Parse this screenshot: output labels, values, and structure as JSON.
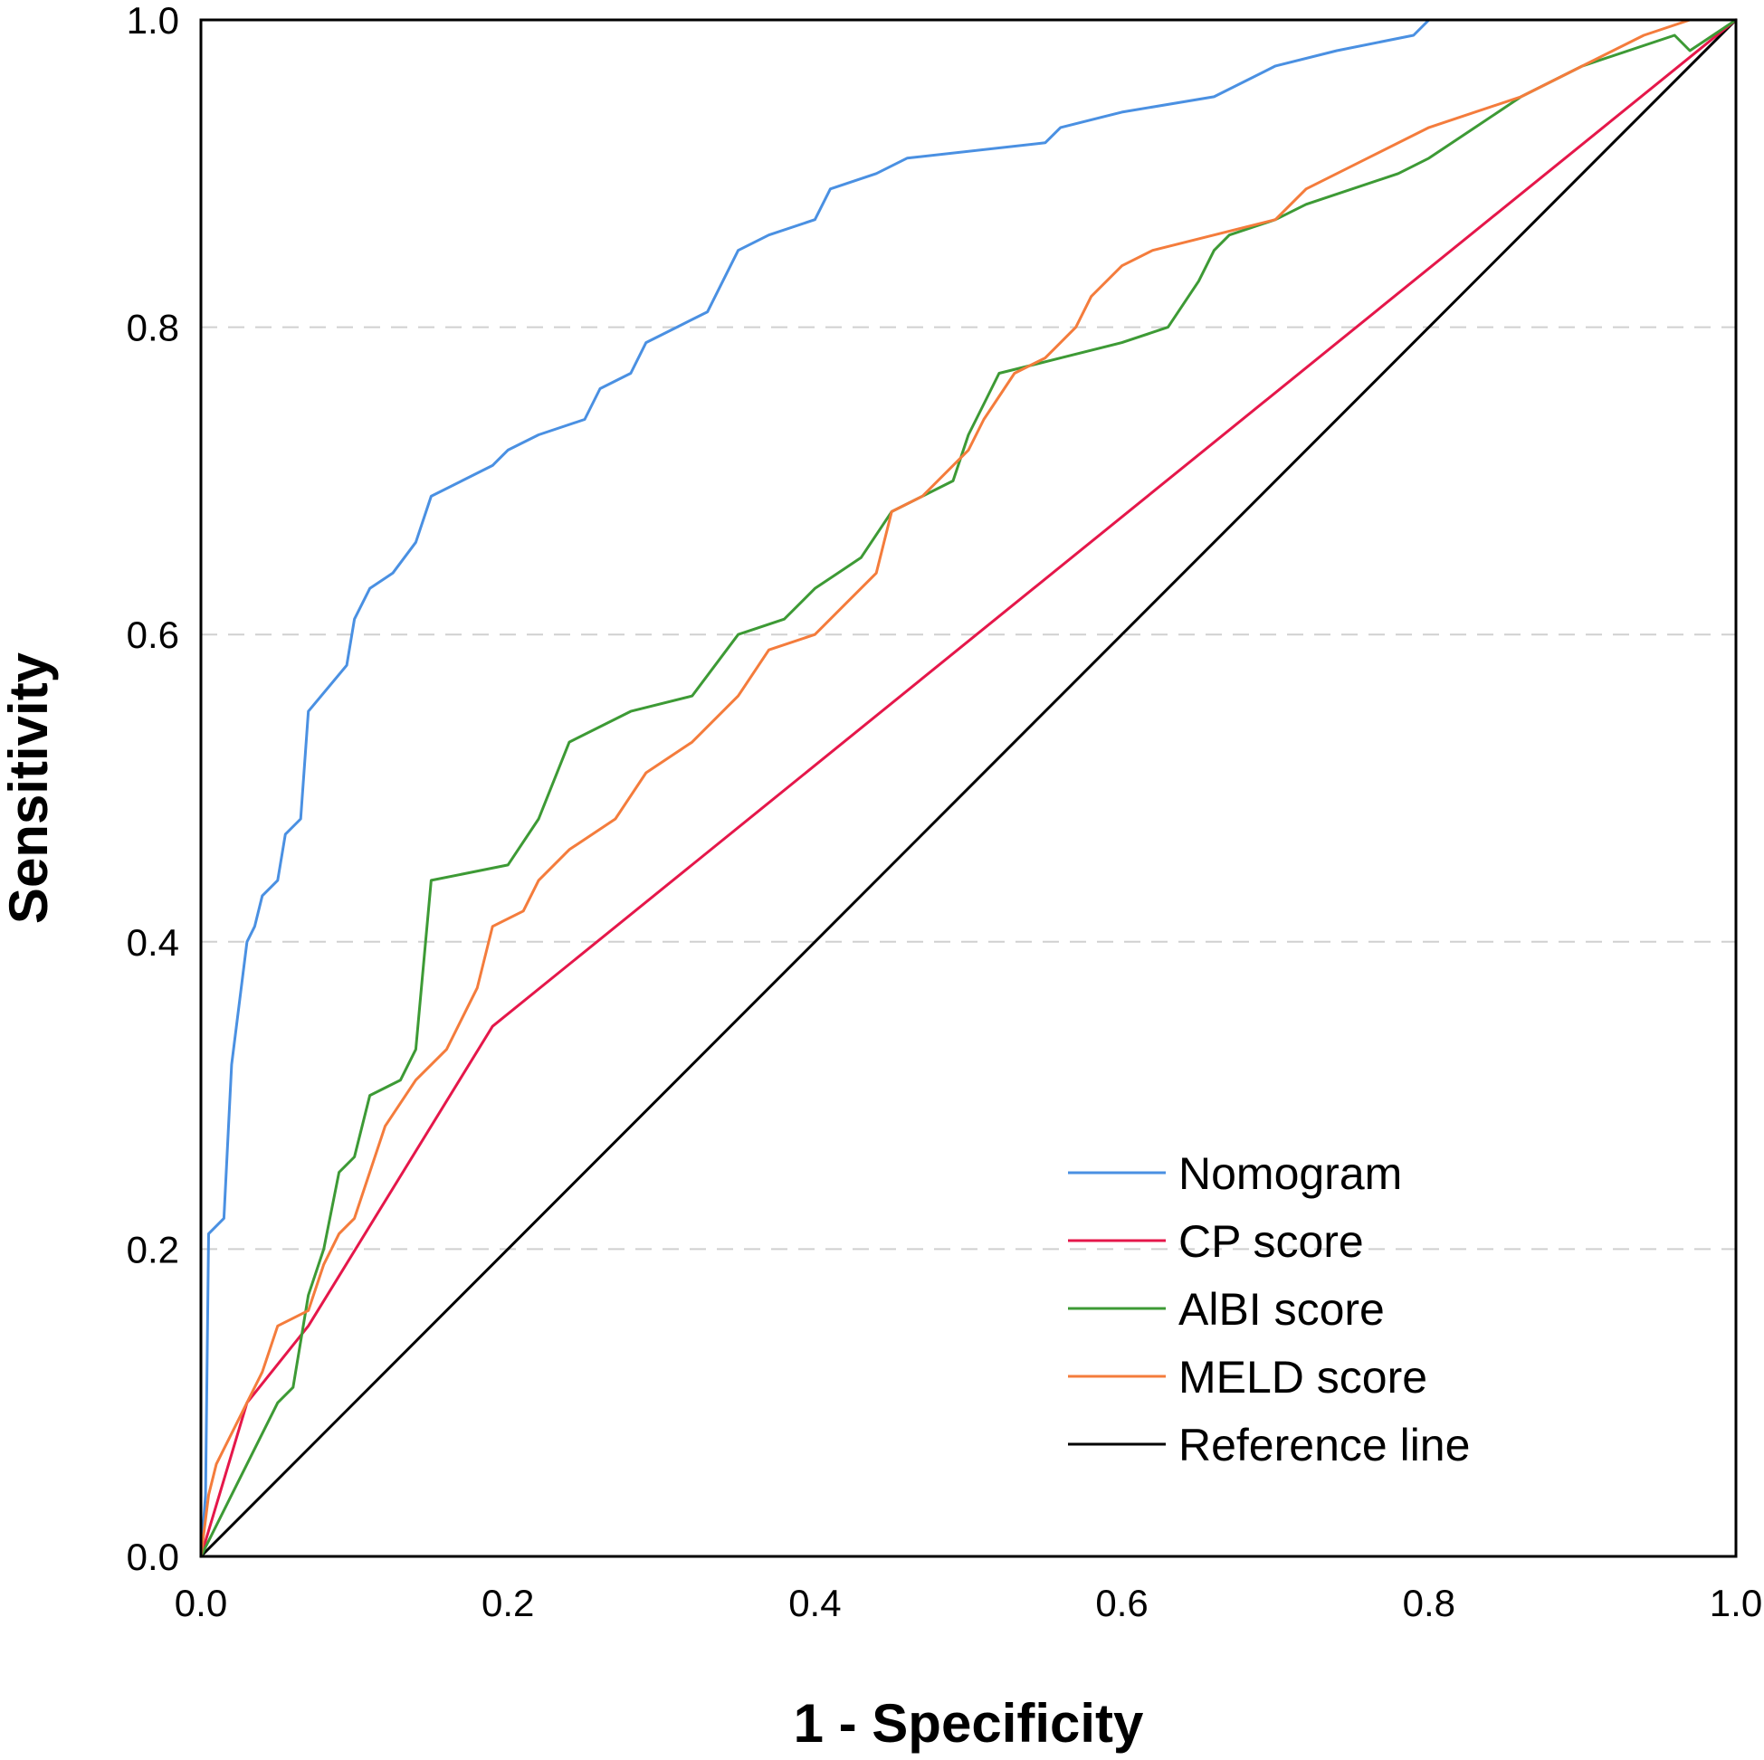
{
  "chart_data": {
    "type": "line",
    "title": "",
    "xlabel": "1 - Specificity",
    "ylabel": "Sensitivity",
    "xlim": [
      0,
      1
    ],
    "ylim": [
      0,
      1
    ],
    "xticks": [
      "0.0",
      "0.2",
      "0.4",
      "0.6",
      "0.8",
      "1.0"
    ],
    "yticks": [
      "0.0",
      "0.2",
      "0.4",
      "0.6",
      "0.8",
      "1.0"
    ],
    "grid": "horizontal dashed",
    "legend_position": "bottom-right",
    "series": [
      {
        "name": "Nomogram",
        "color": "#4a90e2",
        "points": [
          [
            0,
            0
          ],
          [
            0.003,
            0.04
          ],
          [
            0.005,
            0.21
          ],
          [
            0.015,
            0.22
          ],
          [
            0.02,
            0.32
          ],
          [
            0.025,
            0.36
          ],
          [
            0.03,
            0.4
          ],
          [
            0.035,
            0.41
          ],
          [
            0.04,
            0.43
          ],
          [
            0.05,
            0.44
          ],
          [
            0.055,
            0.47
          ],
          [
            0.065,
            0.48
          ],
          [
            0.07,
            0.55
          ],
          [
            0.095,
            0.58
          ],
          [
            0.1,
            0.61
          ],
          [
            0.11,
            0.63
          ],
          [
            0.125,
            0.64
          ],
          [
            0.14,
            0.66
          ],
          [
            0.15,
            0.69
          ],
          [
            0.17,
            0.7
          ],
          [
            0.19,
            0.71
          ],
          [
            0.2,
            0.72
          ],
          [
            0.22,
            0.73
          ],
          [
            0.25,
            0.74
          ],
          [
            0.26,
            0.76
          ],
          [
            0.28,
            0.77
          ],
          [
            0.29,
            0.79
          ],
          [
            0.31,
            0.8
          ],
          [
            0.33,
            0.81
          ],
          [
            0.35,
            0.85
          ],
          [
            0.37,
            0.86
          ],
          [
            0.4,
            0.87
          ],
          [
            0.41,
            0.89
          ],
          [
            0.44,
            0.9
          ],
          [
            0.46,
            0.91
          ],
          [
            0.55,
            0.92
          ],
          [
            0.56,
            0.93
          ],
          [
            0.6,
            0.94
          ],
          [
            0.66,
            0.95
          ],
          [
            0.7,
            0.97
          ],
          [
            0.74,
            0.98
          ],
          [
            0.79,
            0.99
          ],
          [
            0.8,
            1.0
          ],
          [
            1.0,
            1.0
          ]
        ]
      },
      {
        "name": "CP score",
        "color": "#e5174a",
        "points": [
          [
            0,
            0
          ],
          [
            0.03,
            0.1
          ],
          [
            0.07,
            0.15
          ],
          [
            0.19,
            0.345
          ],
          [
            1.0,
            1.0
          ]
        ]
      },
      {
        "name": "AlBI score",
        "color": "#3d9a35",
        "points": [
          [
            0,
            0
          ],
          [
            0.02,
            0.04
          ],
          [
            0.04,
            0.08
          ],
          [
            0.05,
            0.1
          ],
          [
            0.06,
            0.11
          ],
          [
            0.07,
            0.17
          ],
          [
            0.08,
            0.2
          ],
          [
            0.09,
            0.25
          ],
          [
            0.1,
            0.26
          ],
          [
            0.11,
            0.3
          ],
          [
            0.13,
            0.31
          ],
          [
            0.14,
            0.33
          ],
          [
            0.15,
            0.44
          ],
          [
            0.2,
            0.45
          ],
          [
            0.22,
            0.48
          ],
          [
            0.24,
            0.53
          ],
          [
            0.28,
            0.55
          ],
          [
            0.32,
            0.56
          ],
          [
            0.35,
            0.6
          ],
          [
            0.38,
            0.61
          ],
          [
            0.4,
            0.63
          ],
          [
            0.43,
            0.65
          ],
          [
            0.45,
            0.68
          ],
          [
            0.49,
            0.7
          ],
          [
            0.5,
            0.73
          ],
          [
            0.51,
            0.75
          ],
          [
            0.52,
            0.77
          ],
          [
            0.56,
            0.78
          ],
          [
            0.6,
            0.79
          ],
          [
            0.63,
            0.8
          ],
          [
            0.65,
            0.83
          ],
          [
            0.66,
            0.85
          ],
          [
            0.67,
            0.86
          ],
          [
            0.7,
            0.87
          ],
          [
            0.72,
            0.88
          ],
          [
            0.78,
            0.9
          ],
          [
            0.8,
            0.91
          ],
          [
            0.83,
            0.93
          ],
          [
            0.86,
            0.95
          ],
          [
            0.9,
            0.97
          ],
          [
            0.96,
            0.99
          ],
          [
            0.97,
            0.98
          ],
          [
            1.0,
            1.0
          ]
        ]
      },
      {
        "name": "MELD score",
        "color": "#f47c3c",
        "points": [
          [
            0,
            0
          ],
          [
            0.005,
            0.04
          ],
          [
            0.01,
            0.06
          ],
          [
            0.02,
            0.08
          ],
          [
            0.04,
            0.12
          ],
          [
            0.05,
            0.15
          ],
          [
            0.07,
            0.16
          ],
          [
            0.08,
            0.19
          ],
          [
            0.09,
            0.21
          ],
          [
            0.1,
            0.22
          ],
          [
            0.12,
            0.28
          ],
          [
            0.14,
            0.31
          ],
          [
            0.16,
            0.33
          ],
          [
            0.18,
            0.37
          ],
          [
            0.19,
            0.41
          ],
          [
            0.21,
            0.42
          ],
          [
            0.22,
            0.44
          ],
          [
            0.24,
            0.46
          ],
          [
            0.27,
            0.48
          ],
          [
            0.29,
            0.51
          ],
          [
            0.32,
            0.53
          ],
          [
            0.35,
            0.56
          ],
          [
            0.37,
            0.59
          ],
          [
            0.4,
            0.6
          ],
          [
            0.42,
            0.62
          ],
          [
            0.44,
            0.64
          ],
          [
            0.45,
            0.68
          ],
          [
            0.47,
            0.69
          ],
          [
            0.5,
            0.72
          ],
          [
            0.51,
            0.74
          ],
          [
            0.53,
            0.77
          ],
          [
            0.55,
            0.78
          ],
          [
            0.57,
            0.8
          ],
          [
            0.58,
            0.82
          ],
          [
            0.6,
            0.84
          ],
          [
            0.62,
            0.85
          ],
          [
            0.66,
            0.86
          ],
          [
            0.7,
            0.87
          ],
          [
            0.72,
            0.89
          ],
          [
            0.76,
            0.91
          ],
          [
            0.8,
            0.93
          ],
          [
            0.86,
            0.95
          ],
          [
            0.9,
            0.97
          ],
          [
            0.94,
            0.99
          ],
          [
            0.97,
            1.0
          ],
          [
            1.0,
            1.0
          ]
        ]
      },
      {
        "name": "Reference line",
        "color": "#000000",
        "points": [
          [
            0,
            0
          ],
          [
            1,
            1
          ]
        ]
      }
    ]
  }
}
